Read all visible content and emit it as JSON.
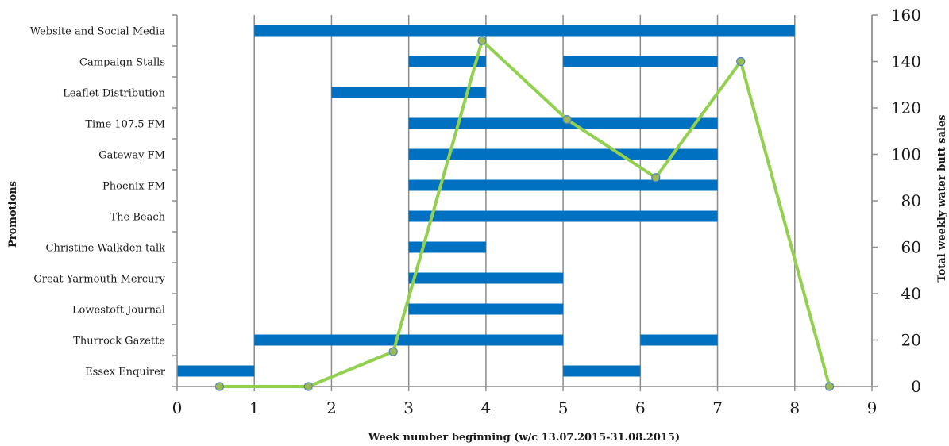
{
  "chart_data": {
    "type": "gantt-line",
    "xlabel": "Week number beginning (w/c 13.07.2015-31.08.2015)",
    "ylabel_left": "Promotions",
    "ylabel_right": "Total weekly water butt sales",
    "xlim": [
      0,
      9
    ],
    "xticks": [
      "0",
      "1",
      "2",
      "3",
      "4",
      "5",
      "6",
      "7",
      "8",
      "9"
    ],
    "ylim_right": [
      0,
      160
    ],
    "yticks_right": [
      "0",
      "20",
      "40",
      "60",
      "80",
      "100",
      "120",
      "140",
      "160"
    ],
    "bar_color": "#0070C0",
    "line_color": "#92D050",
    "marker_fill": "#9BBB59",
    "marker_stroke": "#4F81BD",
    "promotions": [
      {
        "name": "Website and Social Media",
        "intervals": [
          [
            1,
            8
          ]
        ]
      },
      {
        "name": "Campaign Stalls",
        "intervals": [
          [
            3,
            4
          ],
          [
            5,
            7
          ]
        ]
      },
      {
        "name": "Leaflet Distribution",
        "intervals": [
          [
            2,
            4
          ]
        ]
      },
      {
        "name": "Time 107.5 FM",
        "intervals": [
          [
            3,
            7
          ]
        ]
      },
      {
        "name": "Gateway FM",
        "intervals": [
          [
            3,
            7
          ]
        ]
      },
      {
        "name": "Phoenix FM",
        "intervals": [
          [
            3,
            7
          ]
        ]
      },
      {
        "name": "The Beach",
        "intervals": [
          [
            3,
            7
          ]
        ]
      },
      {
        "name": "Christine Walkden talk",
        "intervals": [
          [
            3,
            4
          ]
        ]
      },
      {
        "name": "Great Yarmouth Mercury",
        "intervals": [
          [
            3,
            5
          ]
        ]
      },
      {
        "name": "Lowestoft Journal",
        "intervals": [
          [
            3,
            5
          ]
        ]
      },
      {
        "name": "Thurrock Gazette",
        "intervals": [
          [
            1,
            5
          ],
          [
            6,
            7
          ]
        ]
      },
      {
        "name": "Essex Enquirer",
        "intervals": [
          [
            0,
            1
          ],
          [
            5,
            6
          ]
        ]
      }
    ],
    "sales": [
      {
        "x": 0.55,
        "y": 0
      },
      {
        "x": 1.7,
        "y": 0
      },
      {
        "x": 2.8,
        "y": 15
      },
      {
        "x": 3.95,
        "y": 149
      },
      {
        "x": 5.05,
        "y": 115
      },
      {
        "x": 6.2,
        "y": 90
      },
      {
        "x": 7.3,
        "y": 140
      },
      {
        "x": 8.45,
        "y": 0
      }
    ]
  }
}
